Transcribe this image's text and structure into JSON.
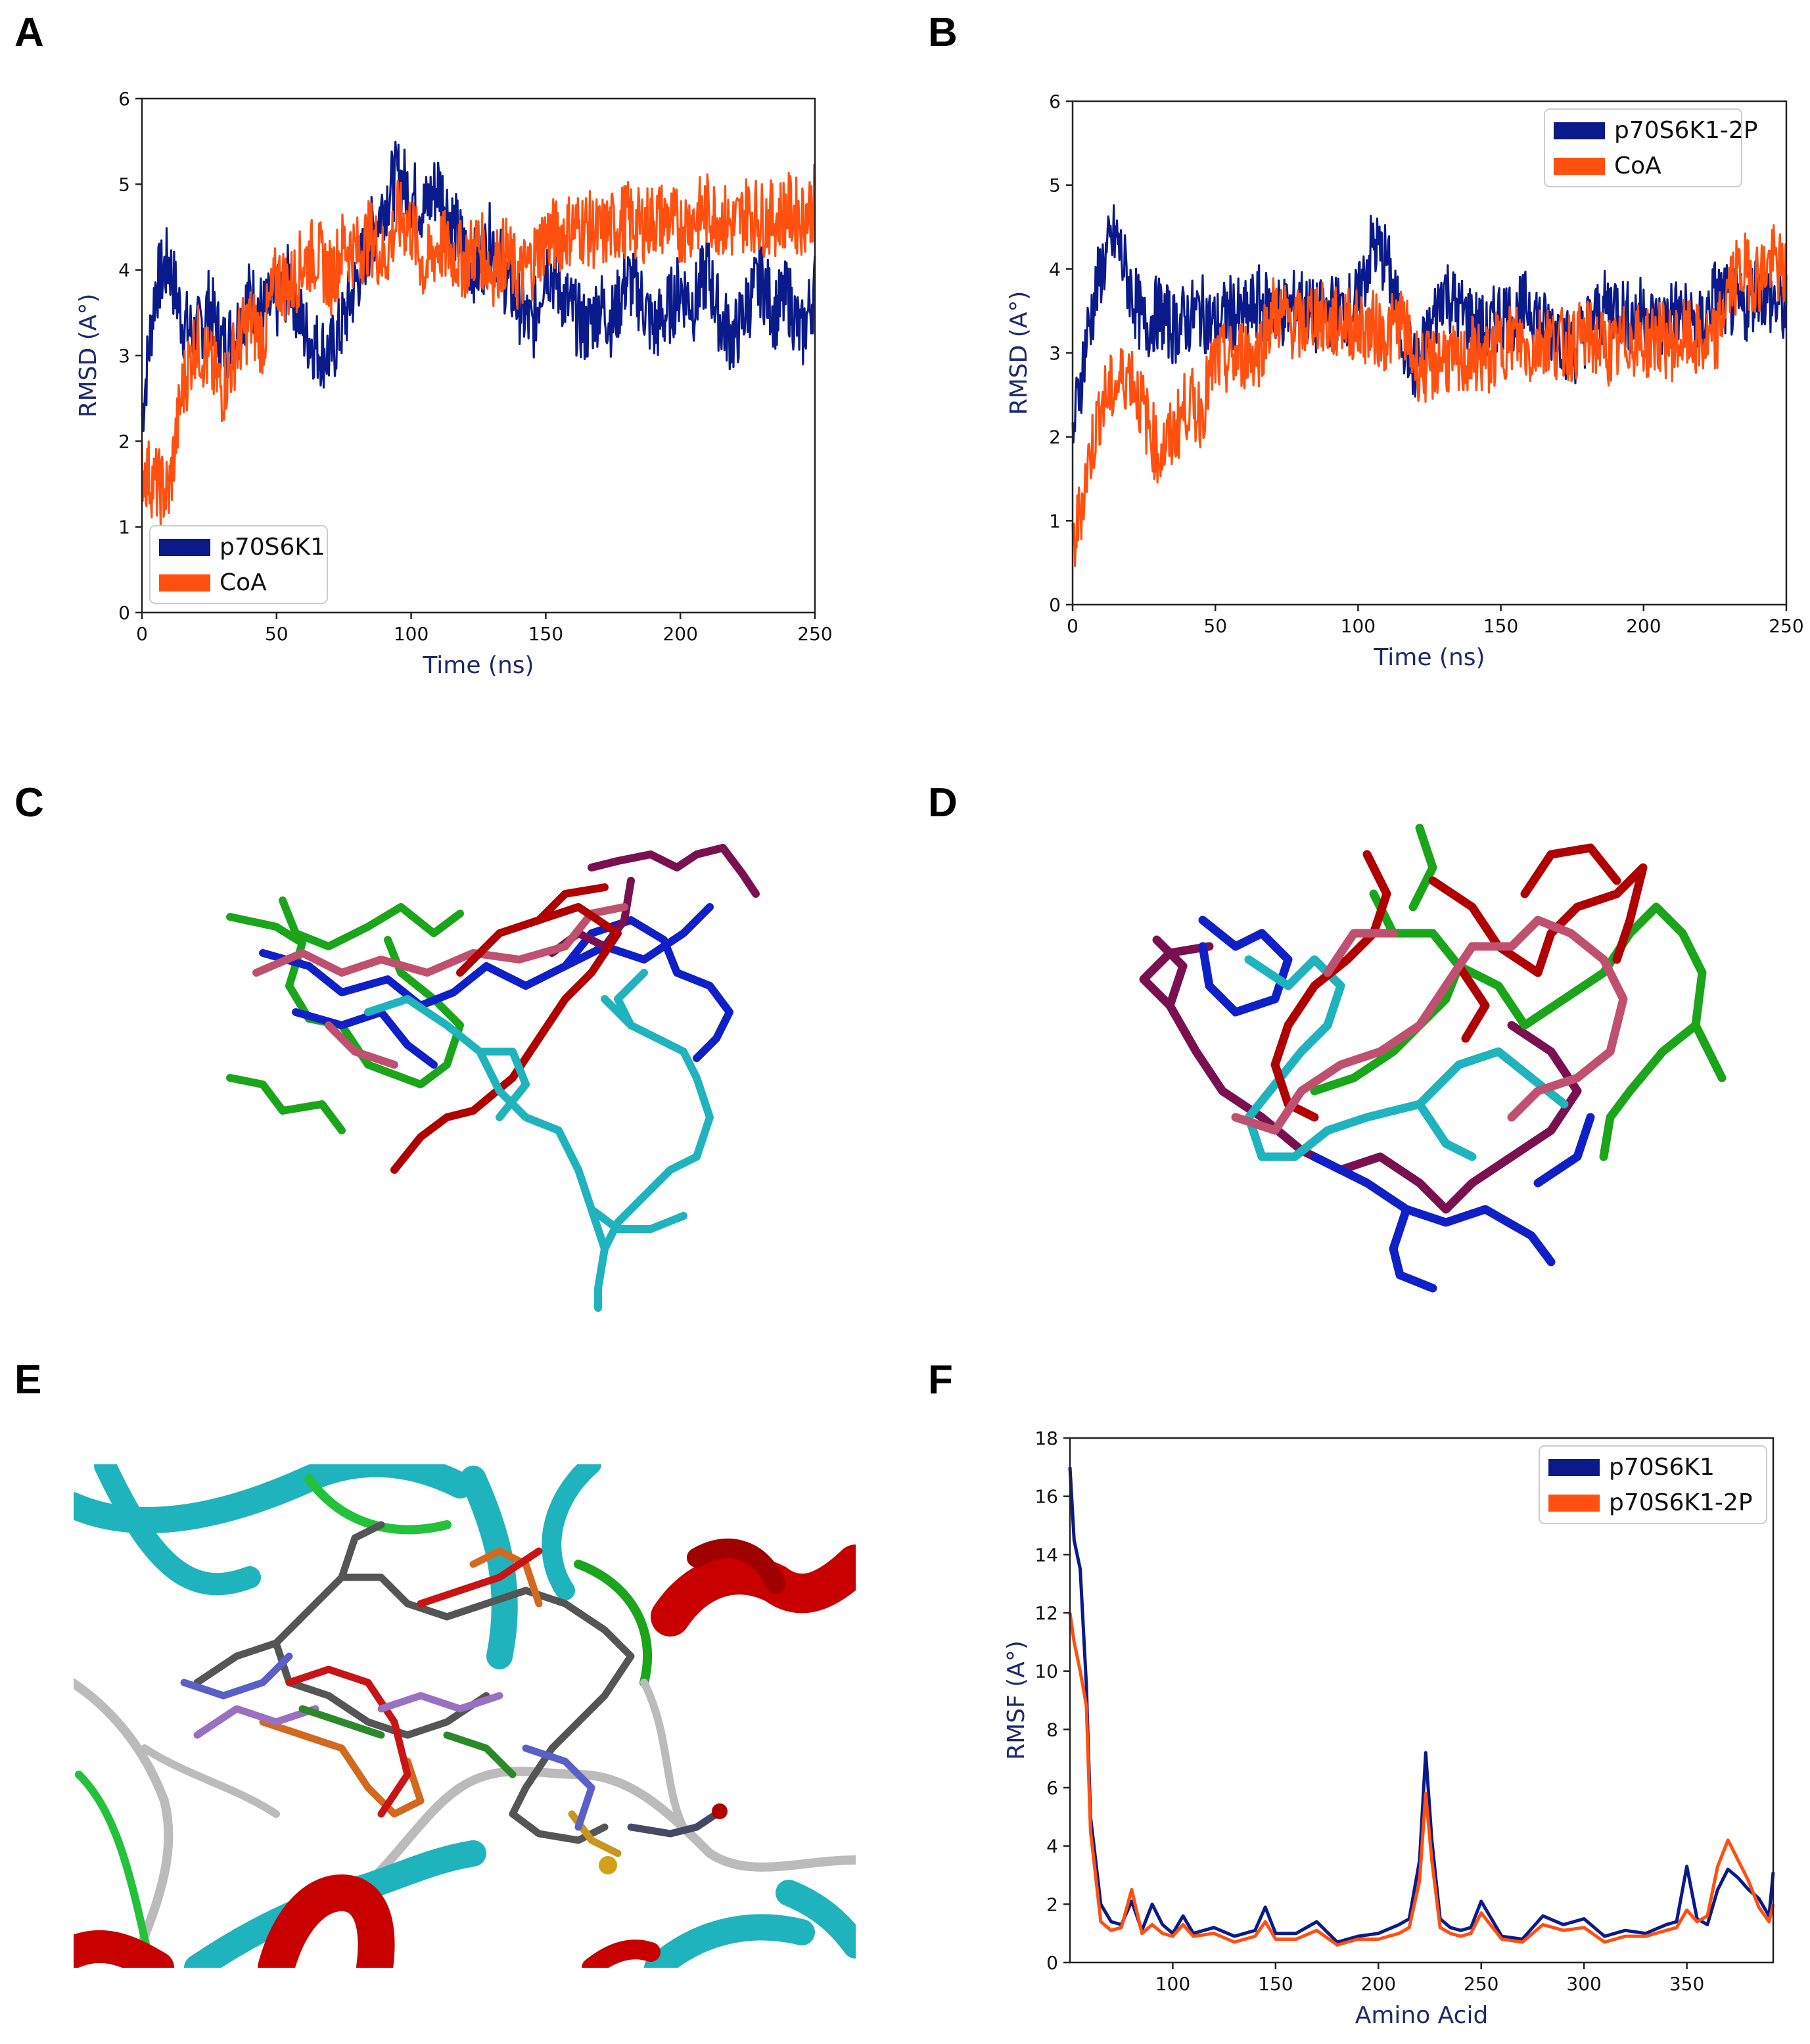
{
  "panels": {
    "A": {
      "letter": "A"
    },
    "B": {
      "letter": "B"
    },
    "C": {
      "letter": "C"
    },
    "D": {
      "letter": "D"
    },
    "E": {
      "letter": "E"
    },
    "F": {
      "letter": "F"
    }
  },
  "colors": {
    "navy": "#0a1a8a",
    "orange": "#ff5010",
    "cyan": "#1fb3bd",
    "green": "#1aa51a",
    "red": "#b00000",
    "maroon": "#7a1050",
    "pink": "#c05070",
    "blue": "#1020c8"
  },
  "chart_data": [
    {
      "id": "A",
      "type": "line",
      "xlabel": "Time (ns)",
      "ylabel": "RMSD (A°)",
      "xlim": [
        0,
        250
      ],
      "ylim": [
        0,
        6
      ],
      "xticks": [
        0,
        50,
        100,
        150,
        200,
        250
      ],
      "yticks": [
        0,
        1,
        2,
        3,
        4,
        5,
        6
      ],
      "legend_position": "lower-left",
      "series": [
        {
          "name": "p70S6K1",
          "color": "#0a1a8a",
          "x": [
            0,
            5,
            10,
            15,
            20,
            25,
            30,
            35,
            40,
            45,
            50,
            55,
            60,
            65,
            70,
            75,
            80,
            85,
            90,
            95,
            100,
            105,
            110,
            115,
            120,
            125,
            130,
            135,
            140,
            145,
            150,
            155,
            160,
            165,
            170,
            175,
            180,
            185,
            190,
            195,
            200,
            205,
            210,
            215,
            220,
            225,
            230,
            235,
            240,
            245,
            250
          ],
          "y": [
            2.3,
            3.8,
            4.1,
            3.4,
            3.2,
            3.6,
            3.1,
            3.3,
            3.7,
            3.5,
            3.6,
            3.9,
            3.3,
            3.1,
            3.0,
            3.4,
            3.9,
            4.4,
            4.8,
            5.1,
            4.9,
            4.7,
            5.0,
            4.6,
            4.2,
            4.0,
            4.4,
            3.9,
            3.6,
            3.3,
            4.1,
            3.8,
            3.5,
            3.3,
            3.6,
            3.4,
            3.9,
            3.7,
            3.3,
            3.5,
            3.8,
            3.6,
            4.0,
            3.4,
            3.2,
            3.6,
            3.9,
            3.5,
            3.7,
            3.2,
            3.8
          ]
        },
        {
          "name": "CoA",
          "color": "#ff5010",
          "x": [
            0,
            5,
            10,
            15,
            20,
            25,
            30,
            35,
            40,
            45,
            50,
            55,
            60,
            65,
            70,
            75,
            80,
            85,
            90,
            95,
            100,
            105,
            110,
            115,
            120,
            125,
            130,
            135,
            140,
            145,
            150,
            155,
            160,
            165,
            170,
            175,
            180,
            185,
            190,
            195,
            200,
            205,
            210,
            215,
            220,
            225,
            230,
            235,
            240,
            245,
            250
          ],
          "y": [
            1.7,
            1.5,
            1.4,
            2.6,
            3.2,
            2.9,
            2.6,
            3.1,
            3.4,
            3.2,
            3.9,
            3.8,
            4.1,
            4.2,
            3.9,
            4.3,
            4.2,
            4.4,
            4.1,
            4.6,
            4.5,
            4.0,
            4.3,
            4.2,
            4.1,
            4.3,
            4.0,
            4.2,
            3.9,
            4.1,
            4.4,
            4.4,
            4.5,
            4.5,
            4.4,
            4.5,
            4.6,
            4.5,
            4.6,
            4.6,
            4.5,
            4.6,
            4.7,
            4.6,
            4.5,
            4.7,
            4.6,
            4.6,
            4.7,
            4.6,
            4.8
          ]
        }
      ]
    },
    {
      "id": "B",
      "type": "line",
      "xlabel": "Time (ns)",
      "ylabel": "RMSD (A°)",
      "xlim": [
        0,
        250
      ],
      "ylim": [
        0,
        6
      ],
      "xticks": [
        0,
        50,
        100,
        150,
        200,
        250
      ],
      "yticks": [
        0,
        1,
        2,
        3,
        4,
        5,
        6
      ],
      "legend_position": "upper-right",
      "series": [
        {
          "name": "p70S6K1-2P",
          "color": "#0a1a8a",
          "x": [
            0,
            5,
            10,
            15,
            20,
            25,
            30,
            35,
            40,
            45,
            50,
            55,
            60,
            65,
            70,
            75,
            80,
            85,
            90,
            95,
            100,
            105,
            110,
            115,
            120,
            125,
            130,
            135,
            140,
            145,
            150,
            155,
            160,
            165,
            170,
            175,
            180,
            185,
            190,
            195,
            200,
            205,
            210,
            215,
            220,
            225,
            230,
            235,
            240,
            245,
            250
          ],
          "y": [
            2.0,
            3.2,
            4.0,
            4.4,
            3.8,
            3.3,
            3.5,
            3.3,
            3.4,
            3.5,
            3.3,
            3.5,
            3.4,
            3.6,
            3.5,
            3.5,
            3.6,
            3.4,
            3.5,
            3.5,
            3.6,
            4.3,
            4.1,
            3.3,
            2.8,
            3.2,
            3.8,
            3.5,
            3.4,
            3.2,
            3.5,
            3.4,
            3.6,
            3.3,
            3.3,
            3.0,
            3.3,
            3.5,
            3.6,
            3.4,
            3.5,
            3.3,
            3.5,
            3.4,
            3.3,
            3.7,
            3.6,
            3.5,
            3.8,
            3.6,
            3.5
          ]
        },
        {
          "name": "CoA",
          "color": "#ff5010",
          "x": [
            0,
            5,
            10,
            15,
            20,
            25,
            30,
            35,
            40,
            45,
            50,
            55,
            60,
            65,
            70,
            75,
            80,
            85,
            90,
            95,
            100,
            105,
            110,
            115,
            120,
            125,
            130,
            135,
            140,
            145,
            150,
            155,
            160,
            165,
            170,
            175,
            180,
            185,
            190,
            195,
            200,
            205,
            210,
            215,
            220,
            225,
            230,
            235,
            240,
            245,
            250
          ],
          "y": [
            0.6,
            1.6,
            2.4,
            2.6,
            2.8,
            2.3,
            1.8,
            2.0,
            2.4,
            2.3,
            2.9,
            2.9,
            3.0,
            3.0,
            3.5,
            3.4,
            3.3,
            3.5,
            3.3,
            3.4,
            3.3,
            3.3,
            3.2,
            3.4,
            2.9,
            2.8,
            3.0,
            2.8,
            3.0,
            2.9,
            3.1,
            3.2,
            3.0,
            3.2,
            3.1,
            3.1,
            3.2,
            3.1,
            3.0,
            3.2,
            3.1,
            3.2,
            3.1,
            3.2,
            3.1,
            3.1,
            3.8,
            4.0,
            3.9,
            4.1,
            3.9
          ]
        }
      ]
    },
    {
      "id": "F",
      "type": "line",
      "xlabel": "Amino Acid",
      "ylabel": "RMSF (A°)",
      "xlim": [
        50,
        392
      ],
      "ylim": [
        0,
        18
      ],
      "xticks": [
        100,
        150,
        200,
        250,
        300,
        350
      ],
      "yticks": [
        0,
        2,
        4,
        6,
        8,
        10,
        12,
        14,
        16,
        18
      ],
      "legend_position": "upper-right",
      "series": [
        {
          "name": "p70S6K1",
          "color": "#0a1a8a",
          "x": [
            50,
            52,
            55,
            58,
            60,
            65,
            70,
            75,
            80,
            85,
            90,
            95,
            100,
            105,
            110,
            120,
            130,
            140,
            145,
            150,
            160,
            170,
            180,
            190,
            200,
            210,
            215,
            220,
            223,
            226,
            230,
            235,
            240,
            245,
            250,
            260,
            270,
            280,
            290,
            300,
            310,
            320,
            330,
            340,
            345,
            350,
            355,
            360,
            365,
            370,
            375,
            380,
            385,
            390,
            392
          ],
          "y": [
            17,
            14.5,
            13.5,
            9.5,
            5,
            2,
            1.4,
            1.3,
            2.1,
            1.1,
            2,
            1.3,
            1,
            1.6,
            1,
            1.2,
            0.9,
            1.1,
            1.9,
            1,
            1,
            1.4,
            0.7,
            0.9,
            1,
            1.3,
            1.5,
            3.5,
            7.2,
            4.2,
            1.5,
            1.2,
            1.1,
            1.2,
            2.1,
            0.9,
            0.8,
            1.6,
            1.3,
            1.5,
            0.9,
            1.1,
            1,
            1.3,
            1.4,
            3.3,
            1.5,
            1.3,
            2.5,
            3.2,
            2.9,
            2.5,
            2.2,
            1.6,
            3.1
          ]
        },
        {
          "name": "p70S6K1-2P",
          "color": "#ff5010",
          "x": [
            50,
            52,
            55,
            58,
            60,
            65,
            70,
            75,
            80,
            85,
            90,
            95,
            100,
            105,
            110,
            120,
            130,
            140,
            145,
            150,
            160,
            170,
            180,
            190,
            200,
            210,
            215,
            220,
            223,
            226,
            230,
            235,
            240,
            245,
            250,
            260,
            270,
            280,
            290,
            300,
            310,
            320,
            330,
            340,
            345,
            350,
            355,
            360,
            365,
            370,
            375,
            380,
            385,
            390,
            392
          ],
          "y": [
            12,
            11,
            10,
            8.8,
            4.5,
            1.4,
            1.1,
            1.2,
            2.5,
            1.0,
            1.3,
            1.0,
            0.9,
            1.3,
            0.9,
            1.0,
            0.7,
            0.9,
            1.4,
            0.8,
            0.8,
            1.1,
            0.6,
            0.8,
            0.8,
            1.0,
            1.2,
            2.8,
            5.8,
            3.5,
            1.2,
            1.0,
            0.9,
            1.0,
            1.7,
            0.8,
            0.7,
            1.3,
            1.1,
            1.2,
            0.7,
            0.9,
            0.9,
            1.1,
            1.2,
            1.8,
            1.4,
            1.6,
            3.3,
            4.2,
            3.5,
            2.8,
            1.9,
            1.4,
            2.0
          ]
        }
      ]
    }
  ]
}
